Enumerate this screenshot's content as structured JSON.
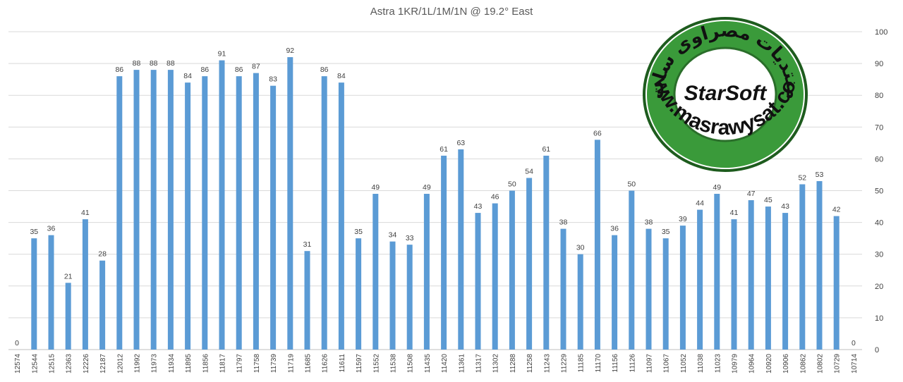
{
  "chart_data": {
    "type": "bar",
    "title": "Astra 1KR/1L/1M/1N @ 19.2° East",
    "categories": [
      "12574",
      "12544",
      "12515",
      "12363",
      "12226",
      "12187",
      "12012",
      "11992",
      "11973",
      "11934",
      "11895",
      "11856",
      "11817",
      "11797",
      "11758",
      "11739",
      "11719",
      "11685",
      "11626",
      "11611",
      "11597",
      "11552",
      "11538",
      "11508",
      "11435",
      "11420",
      "11361",
      "11317",
      "11302",
      "11288",
      "11258",
      "11243",
      "11229",
      "11185",
      "11170",
      "11156",
      "11126",
      "11097",
      "11067",
      "11052",
      "11038",
      "11023",
      "10979",
      "10964",
      "10920",
      "10906",
      "10862",
      "10802",
      "10729",
      "10714"
    ],
    "values": [
      0,
      35,
      36,
      21,
      41,
      28,
      86,
      88,
      88,
      88,
      84,
      86,
      91,
      86,
      87,
      83,
      92,
      31,
      86,
      84,
      35,
      49,
      34,
      33,
      49,
      61,
      63,
      43,
      46,
      50,
      54,
      61,
      38,
      30,
      66,
      36,
      50,
      38,
      35,
      39,
      44,
      49,
      41,
      47,
      45,
      43,
      52,
      53,
      42,
      0
    ],
    "ylim": [
      0,
      100
    ],
    "yticks": [
      0,
      10,
      20,
      30,
      40,
      50,
      60,
      70,
      80,
      90,
      100
    ],
    "y_axis_side": "right",
    "grid": true,
    "bar_color": "#5b9bd5",
    "grid_color": "#d9d9d9",
    "text_color": "#404040"
  },
  "logo": {
    "arabic_text": "منتديات مصراوى سات",
    "center_text": "StarSoft",
    "url_text": "www.masrawysat.com",
    "ring_color": "#3a9a3a",
    "outer_color": "#1e5c1e",
    "text_color": "#111111"
  }
}
